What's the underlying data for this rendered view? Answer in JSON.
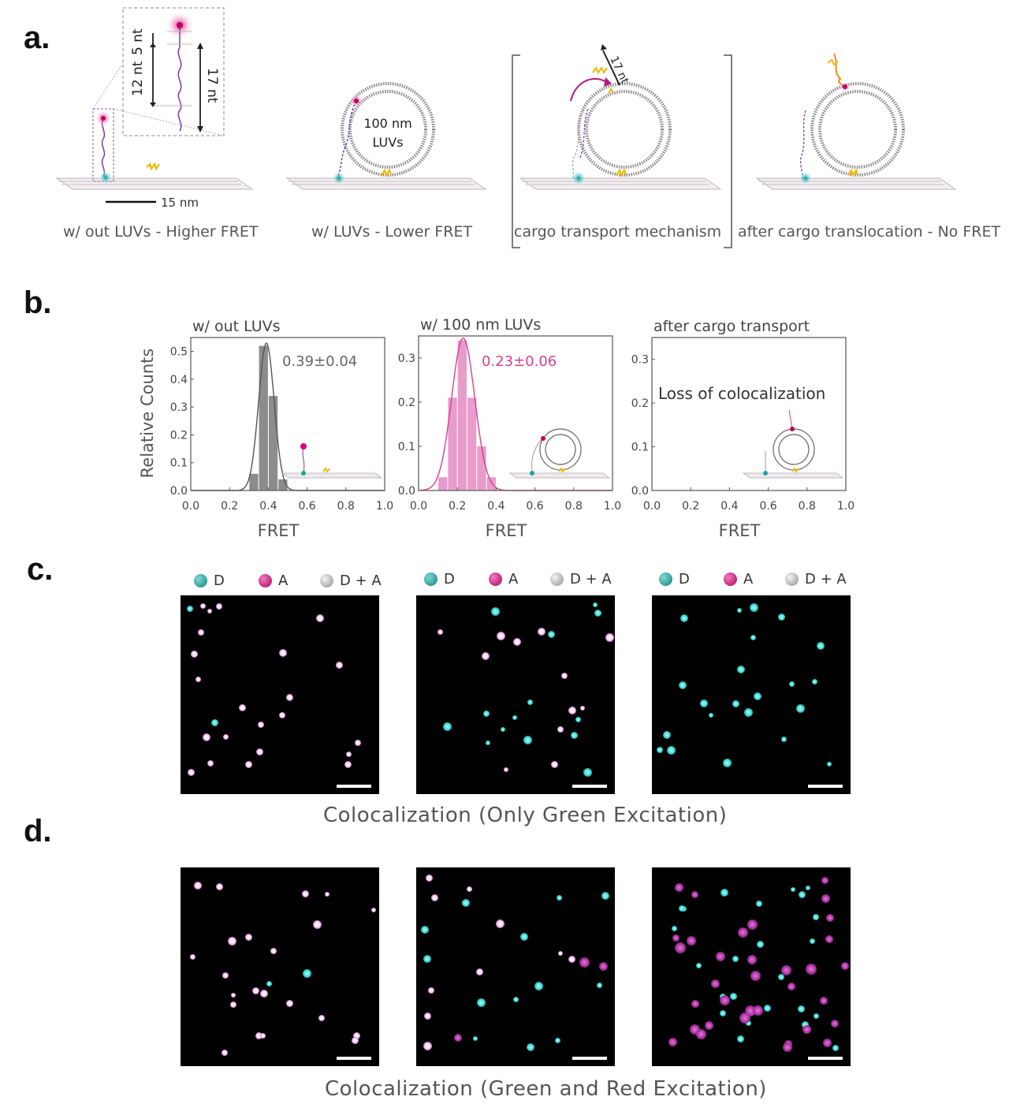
{
  "panel_labels": {
    "a": "a.",
    "b": "b.",
    "c": "c.",
    "d": "d."
  },
  "panel_a": {
    "inset_labels": {
      "nt12": "12 nt",
      "nt5": "5 nt",
      "nt17": "17 nt"
    },
    "scale_bar": "15 nm",
    "luv_label_line1": "100 nm",
    "luv_label_line2": "LUVs",
    "arrow_label": "17 nt",
    "captions": [
      "w/ out LUVs - Higher FRET",
      "w/ LUVs - Lower FRET",
      "cargo transport mechanism",
      "after cargo translocation - No FRET"
    ]
  },
  "panel_b": {
    "ylabel": "Relative Counts",
    "xlabel": "FRET",
    "plots": [
      {
        "title": "w/ out LUVs",
        "annotation": "0.39±0.04",
        "yticks": [
          "0.0",
          "0.1",
          "0.2",
          "0.3",
          "0.4",
          "0.5"
        ]
      },
      {
        "title": "w/ 100 nm LUVs",
        "annotation": "0.23±0.06",
        "yticks": [
          "0.0",
          "0.1",
          "0.2",
          "0.3"
        ]
      },
      {
        "title": "after cargo transport",
        "annotation": "Loss of colocalization",
        "yticks": [
          "0.0",
          "0.1",
          "0.2",
          "0.3"
        ]
      }
    ],
    "xticks": [
      "0.0",
      "0.2",
      "0.4",
      "0.6",
      "0.8",
      "1.0"
    ]
  },
  "chart_data": [
    {
      "type": "bar",
      "title": "w/ out LUVs",
      "xlabel": "FRET",
      "ylabel": "Relative Counts",
      "xlim": [
        0,
        1
      ],
      "ylim": [
        0,
        0.55
      ],
      "bins_center": [
        0.325,
        0.375,
        0.425,
        0.475
      ],
      "values": [
        0.06,
        0.52,
        0.34,
        0.04
      ],
      "fit_peak": 0.39,
      "fit_sigma": 0.04,
      "fit_height": 0.53,
      "color": "#8c8c8c",
      "annotation": "0.39±0.04"
    },
    {
      "type": "bar",
      "title": "w/ 100 nm LUVs",
      "xlabel": "FRET",
      "ylabel": "",
      "xlim": [
        0,
        1
      ],
      "ylim": [
        0,
        0.35
      ],
      "bins_center": [
        0.125,
        0.175,
        0.225,
        0.275,
        0.325,
        0.375
      ],
      "values": [
        0.03,
        0.21,
        0.34,
        0.21,
        0.1,
        0.03
      ],
      "fit_peak": 0.23,
      "fit_sigma": 0.06,
      "fit_height": 0.345,
      "color": "#e89ccb",
      "annotation": "0.23±0.06"
    },
    {
      "type": "bar",
      "title": "after cargo transport",
      "xlabel": "FRET",
      "ylabel": "",
      "xlim": [
        0,
        1
      ],
      "ylim": [
        0,
        0.35
      ],
      "bins_center": [],
      "values": [],
      "annotation": "Loss of colocalization"
    }
  ],
  "legend": {
    "d": "D",
    "a": "A",
    "da": "D + A"
  },
  "colors": {
    "donor": "#1aa3a0",
    "acceptor": "#c0287c",
    "both": "#bdbdbd",
    "pink_text": "#d63f95"
  },
  "captions": {
    "c": "Colocalization (Only Green Excitation)",
    "d": "Colocalization (Green and Red Excitation)"
  }
}
